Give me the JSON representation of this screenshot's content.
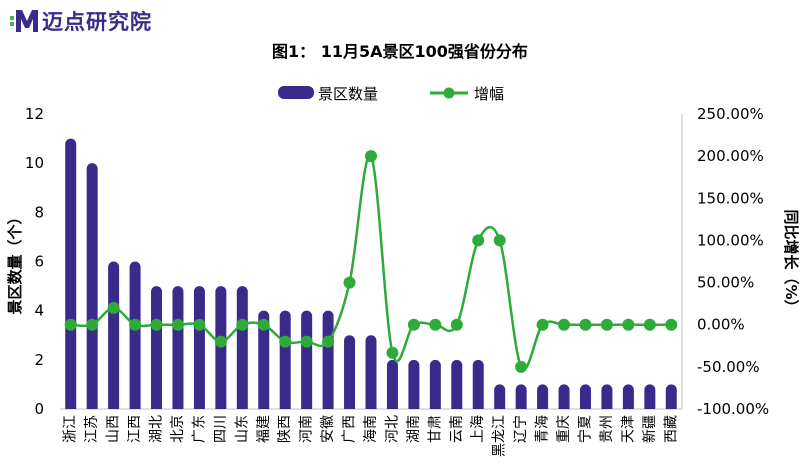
{
  "brand": {
    "name": "迈点研究院",
    "logo_icon": "m-logo-icon",
    "color": "#3b2a8c",
    "accent": "#43b649"
  },
  "chart_data": {
    "type": "bar",
    "title": "图1： 11月5A景区100强省份分布",
    "ylabel": "景区数量（个）",
    "y2label": "同比增长（%）",
    "ylim": [
      0,
      12
    ],
    "yticks": [
      "0",
      "2",
      "4",
      "6",
      "8",
      "10",
      "12"
    ],
    "y2lim": [
      -100,
      250
    ],
    "y2ticks": [
      "-100.00%",
      "-50.00%",
      "0.00%",
      "50.00%",
      "100.00%",
      "150.00%",
      "200.00%",
      "250.00%"
    ],
    "legend_position": "top-center",
    "grid": false,
    "bar_color": "#3b2a8c",
    "line_color": "#2daa3a",
    "categories": [
      "浙江",
      "江苏",
      "山西",
      "江西",
      "湖北",
      "北京",
      "广东",
      "四川",
      "山东",
      "福建",
      "陕西",
      "河南",
      "安徽",
      "广西",
      "海南",
      "河北",
      "湖南",
      "甘肃",
      "云南",
      "上海",
      "黑龙江",
      "辽宁",
      "青海",
      "重庆",
      "宁夏",
      "贵州",
      "天津",
      "新疆",
      "西藏"
    ],
    "series": [
      {
        "name": "景区数量",
        "type": "bar",
        "axis": "left",
        "values": [
          11,
          10,
          6,
          6,
          5,
          5,
          5,
          5,
          5,
          4,
          4,
          4,
          4,
          3,
          3,
          2,
          2,
          2,
          2,
          2,
          1,
          1,
          1,
          1,
          1,
          1,
          1,
          1,
          1
        ]
      },
      {
        "name": "增幅",
        "type": "line",
        "axis": "right",
        "unit": "%",
        "values": [
          0,
          0,
          20,
          0,
          0,
          0,
          0,
          -20,
          0,
          0,
          -20,
          -20,
          -20,
          50,
          200,
          -33.33,
          0,
          0,
          0,
          100,
          100,
          -50,
          0,
          0,
          0,
          0,
          0,
          0,
          0
        ]
      }
    ]
  }
}
